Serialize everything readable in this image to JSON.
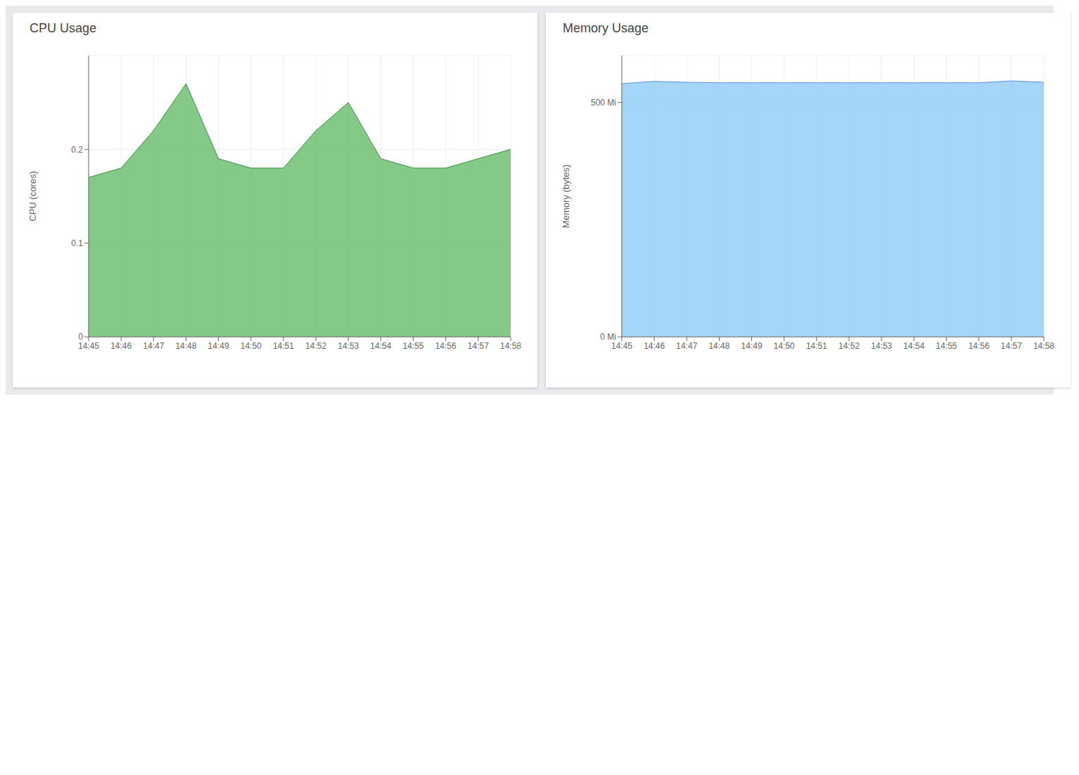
{
  "chart_data": [
    {
      "type": "area",
      "title": "CPU Usage",
      "y_label": "CPU (cores)",
      "categories": [
        "14:45",
        "14:46",
        "14:47",
        "14:48",
        "14:49",
        "14:50",
        "14:51",
        "14:52",
        "14:53",
        "14:54",
        "14:55",
        "14:56",
        "14:57",
        "14:58"
      ],
      "values": [
        0.17,
        0.18,
        0.22,
        0.27,
        0.19,
        0.18,
        0.18,
        0.22,
        0.25,
        0.19,
        0.18,
        0.18,
        0.19,
        0.2
      ],
      "color": "#388e3c",
      "fill_color": "#66bb6a",
      "ylim": [
        0,
        0.3
      ],
      "yticks": [
        0,
        0.1,
        0.2
      ],
      "grid": true
    },
    {
      "type": "area",
      "title": "Memory Usage",
      "y_label": "Memory (bytes)",
      "categories": [
        "14:45",
        "14:46",
        "14:47",
        "14:48",
        "14:49",
        "14:50",
        "14:51",
        "14:52",
        "14:53",
        "14:54",
        "14:55",
        "14:56",
        "14:57",
        "14:58"
      ],
      "values": [
        540,
        545,
        543,
        542,
        542,
        542,
        542,
        542,
        542,
        542,
        542,
        542,
        546,
        543
      ],
      "color": "#5c8ee0",
      "fill_color": "#90caf9",
      "ylim": [
        0,
        600
      ],
      "yticks": [
        {
          "value": 0,
          "label": "0 Mi"
        },
        {
          "value": 500,
          "label": "500 Mi"
        }
      ],
      "grid": true
    }
  ]
}
